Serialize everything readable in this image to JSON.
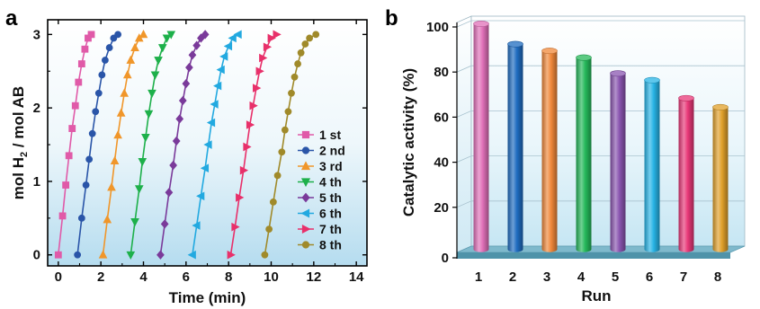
{
  "chart_data": [
    {
      "type": "line",
      "panel_label": "a",
      "xlabel": "Time (min)",
      "ylabel": "mol H2 / mol AB",
      "ylabel_parts": [
        "mol H",
        "2",
        " / mol AB"
      ],
      "xlim": [
        -0.5,
        14.5
      ],
      "ylim": [
        -0.15,
        3.2
      ],
      "xticks": [
        0,
        2,
        4,
        6,
        8,
        10,
        12,
        14
      ],
      "yticks": [
        0,
        1,
        2,
        3
      ],
      "grid": false,
      "legend_position": "right-center",
      "series": [
        {
          "name": "1 st",
          "color": "#e05aa8",
          "marker": "square",
          "x": [
            0.0,
            0.2,
            0.35,
            0.5,
            0.65,
            0.8,
            0.95,
            1.1,
            1.25,
            1.4,
            1.55
          ],
          "y": [
            0.0,
            0.53,
            0.95,
            1.35,
            1.72,
            2.03,
            2.35,
            2.6,
            2.8,
            2.95,
            3.0
          ]
        },
        {
          "name": "2 nd",
          "color": "#2a55a8",
          "marker": "circle",
          "x": [
            0.9,
            1.1,
            1.3,
            1.45,
            1.6,
            1.75,
            1.9,
            2.05,
            2.2,
            2.4,
            2.6,
            2.8
          ],
          "y": [
            0.0,
            0.5,
            0.95,
            1.3,
            1.65,
            1.95,
            2.2,
            2.45,
            2.65,
            2.82,
            2.95,
            3.0
          ]
        },
        {
          "name": "3 rd",
          "color": "#f0962a",
          "marker": "triangle-up",
          "x": [
            2.1,
            2.3,
            2.5,
            2.65,
            2.8,
            2.95,
            3.1,
            3.25,
            3.4,
            3.6,
            3.8,
            4.0
          ],
          "y": [
            0.0,
            0.48,
            0.92,
            1.28,
            1.63,
            1.93,
            2.2,
            2.45,
            2.65,
            2.82,
            2.95,
            3.0
          ]
        },
        {
          "name": "4 th",
          "color": "#1db04a",
          "marker": "triangle-down",
          "x": [
            3.4,
            3.6,
            3.8,
            3.95,
            4.1,
            4.25,
            4.4,
            4.55,
            4.7,
            4.9,
            5.1,
            5.3
          ],
          "y": [
            0.0,
            0.45,
            0.9,
            1.27,
            1.6,
            1.92,
            2.2,
            2.45,
            2.65,
            2.82,
            2.95,
            3.0
          ]
        },
        {
          "name": "5 th",
          "color": "#7a3a9a",
          "marker": "diamond",
          "x": [
            4.8,
            5.0,
            5.2,
            5.4,
            5.55,
            5.7,
            5.85,
            6.0,
            6.15,
            6.3,
            6.5,
            6.7,
            6.9
          ],
          "y": [
            0.0,
            0.42,
            0.85,
            1.22,
            1.55,
            1.85,
            2.1,
            2.33,
            2.55,
            2.72,
            2.85,
            2.95,
            3.0
          ]
        },
        {
          "name": "6 th",
          "color": "#22a9e0",
          "marker": "triangle-left",
          "x": [
            6.3,
            6.5,
            6.7,
            6.9,
            7.05,
            7.2,
            7.35,
            7.5,
            7.65,
            7.8,
            8.0,
            8.2,
            8.45
          ],
          "y": [
            0.0,
            0.4,
            0.8,
            1.18,
            1.5,
            1.8,
            2.05,
            2.3,
            2.52,
            2.7,
            2.84,
            2.95,
            3.0
          ]
        },
        {
          "name": "7 th",
          "color": "#e8306a",
          "marker": "triangle-right",
          "x": [
            8.1,
            8.3,
            8.5,
            8.7,
            8.85,
            9.0,
            9.15,
            9.3,
            9.45,
            9.6,
            9.8,
            10.0,
            10.25
          ],
          "y": [
            0.0,
            0.38,
            0.78,
            1.15,
            1.47,
            1.77,
            2.03,
            2.27,
            2.5,
            2.68,
            2.83,
            2.95,
            3.0
          ]
        },
        {
          "name": "8 th",
          "color": "#a08a2a",
          "marker": "circle",
          "x": [
            9.7,
            9.9,
            10.1,
            10.3,
            10.5,
            10.65,
            10.8,
            10.95,
            11.1,
            11.25,
            11.4,
            11.6,
            11.8,
            12.1
          ],
          "y": [
            0.0,
            0.35,
            0.72,
            1.08,
            1.4,
            1.7,
            1.95,
            2.2,
            2.42,
            2.6,
            2.75,
            2.87,
            2.95,
            3.0
          ]
        }
      ]
    },
    {
      "type": "bar",
      "panel_label": "b",
      "xlabel": "Run",
      "ylabel": "Catalytic activity (%)",
      "categories": [
        "1",
        "2",
        "3",
        "4",
        "5",
        "6",
        "7",
        "8"
      ],
      "values": [
        100,
        91,
        88,
        85,
        78,
        75,
        67,
        63
      ],
      "colors": [
        "#e070b8",
        "#1f6cc0",
        "#f0883a",
        "#25b85a",
        "#8a55b0",
        "#28b4e6",
        "#e83878",
        "#e0a02a"
      ],
      "ylim": [
        0,
        100
      ],
      "yticks": [
        0,
        20,
        40,
        60,
        80,
        100
      ],
      "grid": true,
      "style": "3d-cylinder"
    }
  ]
}
